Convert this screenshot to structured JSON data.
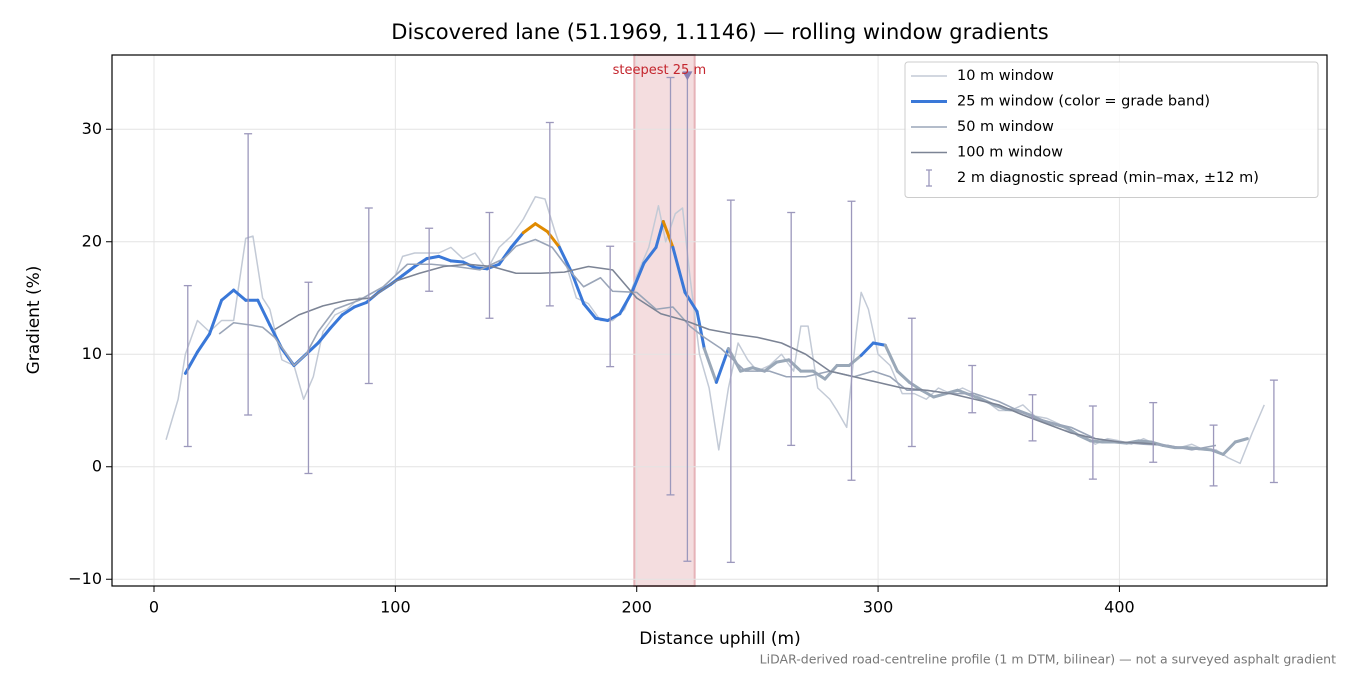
{
  "chart_data": {
    "type": "line",
    "title": "Discovered lane (51.1969, 1.1146) — rolling window gradients",
    "x_label": "Distance uphill (m)",
    "y_label": "Gradient (%)",
    "footnote": "LiDAR-derived road-centreline profile (1 m DTM, bilinear) — not a surveyed asphalt gradient",
    "xlim": [
      -17.4,
      486
    ],
    "ylim": [
      -10.6,
      36.6
    ],
    "xticks": [
      0,
      100,
      200,
      300,
      400
    ],
    "yticks": [
      {
        "value": -10,
        "label": "−10"
      },
      0,
      10,
      20,
      30
    ],
    "grid": true,
    "legend": "upper right",
    "highlight_span": [
      199,
      224
    ],
    "highlight_color": "#e6b3b8",
    "annotation": {
      "text": "steepest 25 m",
      "x": 221,
      "y": 34.7,
      "color": "#c4262e",
      "marker_color": "#8a7fb3"
    },
    "series": [
      {
        "name": "10 m window",
        "color": "#c3cad6",
        "linewidth": 1.5,
        "x": [
          5,
          10,
          13,
          18,
          23,
          28,
          33,
          38,
          41,
          45,
          48,
          53,
          58,
          62,
          66,
          70,
          75,
          80,
          85,
          90,
          95,
          100,
          103,
          108,
          113,
          118,
          123,
          128,
          133,
          138,
          143,
          148,
          153,
          158,
          162,
          166,
          170,
          175,
          180,
          185,
          190,
          195,
          200,
          205,
          209,
          212,
          216,
          219,
          222,
          226,
          230,
          234,
          238,
          242,
          246,
          250,
          255,
          260,
          265,
          268,
          271,
          275,
          280,
          283,
          287,
          291,
          293,
          296,
          300,
          305,
          310,
          315,
          320,
          325,
          330,
          335,
          340,
          345,
          350,
          355,
          360,
          365,
          370,
          375,
          380,
          385,
          390,
          395,
          400,
          405,
          410,
          415,
          420,
          425,
          430,
          435,
          440,
          445,
          450,
          455,
          460
        ],
        "values": [
          2.4,
          6,
          10,
          13,
          12,
          13,
          13,
          20.3,
          20.5,
          15,
          14,
          9.5,
          9,
          6,
          8,
          12,
          13.5,
          14,
          15,
          15,
          16,
          17,
          18.7,
          19,
          19,
          19,
          19.5,
          18.5,
          19,
          17.5,
          19.5,
          20.5,
          22,
          24,
          23.8,
          21,
          18.5,
          15,
          14.5,
          13,
          13,
          14,
          17,
          19.5,
          23.2,
          20,
          22.5,
          23,
          17,
          10,
          7,
          1.5,
          7,
          11,
          9.5,
          8.5,
          9,
          10,
          8.5,
          12.5,
          12.5,
          7,
          6,
          5,
          3.5,
          12,
          15.5,
          14,
          10,
          9,
          6.5,
          6.5,
          6,
          7,
          6.5,
          7,
          6.5,
          5.8,
          5,
          5,
          5.5,
          4.5,
          4.3,
          3.8,
          3,
          2.8,
          2,
          2.5,
          2.3,
          2,
          2.5,
          2,
          1.9,
          1.7,
          2,
          1.5,
          1.5,
          0.8,
          0.3,
          3,
          5.5
        ]
      },
      {
        "name": "25 m window (color = grade band)",
        "color": "#3a78d8",
        "linewidth": 3,
        "x": [
          13,
          18,
          23,
          28,
          33,
          38,
          43,
          48,
          53,
          58,
          63,
          68,
          73,
          78,
          83,
          88,
          93,
          98,
          103,
          108,
          113,
          118,
          123,
          128,
          133,
          138,
          143,
          148,
          153,
          158,
          163,
          168,
          173,
          178,
          183,
          188,
          193,
          198,
          203,
          208,
          211,
          215,
          220,
          225,
          228,
          233,
          238,
          243,
          248,
          253,
          258,
          263,
          268,
          273,
          278,
          283,
          288,
          293,
          298,
          303,
          308,
          313,
          318,
          323,
          328,
          333,
          338,
          343,
          348,
          353,
          358,
          363,
          368,
          373,
          378,
          383,
          388,
          393,
          398,
          403,
          408,
          413,
          418,
          423,
          428,
          433,
          438,
          443,
          448,
          453
        ],
        "values": [
          8.3,
          10.2,
          11.8,
          14.8,
          15.7,
          14.8,
          14.8,
          12.6,
          10.5,
          9.0,
          10.0,
          11.0,
          12.3,
          13.5,
          14.2,
          14.6,
          15.5,
          16.2,
          17.0,
          17.8,
          18.5,
          18.7,
          18.3,
          18.2,
          17.7,
          17.6,
          18.0,
          19.5,
          20.8,
          21.6,
          20.9,
          19.5,
          17.3,
          14.5,
          13.2,
          13.0,
          13.6,
          15.5,
          18.1,
          19.5,
          21.8,
          19.5,
          15.5,
          13.8,
          10.5,
          7.5,
          10.5,
          8.5,
          8.8,
          8.5,
          9.3,
          9.5,
          8.5,
          8.5,
          7.8,
          9.0,
          9.0,
          9.9,
          11.0,
          10.8,
          8.5,
          7.5,
          6.8,
          6.2,
          6.5,
          6.8,
          6.4,
          6.0,
          5.5,
          5.1,
          5.0,
          4.6,
          4.1,
          3.8,
          3.5,
          2.8,
          2.3,
          2.2,
          2.2,
          2.1,
          2.3,
          2.2,
          1.9,
          1.7,
          1.7,
          1.6,
          1.5,
          1.1,
          2.2,
          2.5
        ],
        "colors": [
          "#3a78d8",
          "#3a78d8",
          "#3a78d8",
          "#3a78d8",
          "#3a78d8",
          "#3a78d8",
          "#3a78d8",
          "#3a78d8",
          "#3a78d8",
          "#3a78d8",
          "#3a78d8",
          "#3a78d8",
          "#3a78d8",
          "#3a78d8",
          "#3a78d8",
          "#3a78d8",
          "#3a78d8",
          "#3a78d8",
          "#3a78d8",
          "#3a78d8",
          "#3a78d8",
          "#3a78d8",
          "#3a78d8",
          "#3a78d8",
          "#3a78d8",
          "#3a78d8",
          "#3a78d8",
          "#3a78d8",
          "#e08a00",
          "#e08a00",
          "#e08a00",
          "#3a78d8",
          "#3a78d8",
          "#3a78d8",
          "#3a78d8",
          "#3a78d8",
          "#3a78d8",
          "#3a78d8",
          "#3a78d8",
          "#3a78d8",
          "#e08a00",
          "#3a78d8",
          "#3a78d8",
          "#3a78d8",
          "#9aa8b8",
          "#3a78d8",
          "#9aa8b8",
          "#9aa8b8",
          "#9aa8b8",
          "#9aa8b8",
          "#9aa8b8",
          "#9aa8b8",
          "#9aa8b8",
          "#9aa8b8",
          "#9aa8b8",
          "#9aa8b8",
          "#9aa8b8",
          "#3a78d8",
          "#3a78d8",
          "#9aa8b8",
          "#9aa8b8",
          "#9aa8b8",
          "#9aa8b8",
          "#9aa8b8",
          "#9aa8b8",
          "#9aa8b8",
          "#9aa8b8",
          "#9aa8b8",
          "#9aa8b8",
          "#9aa8b8",
          "#9aa8b8",
          "#9aa8b8",
          "#9aa8b8",
          "#9aa8b8",
          "#9aa8b8",
          "#9aa8b8",
          "#9aa8b8",
          "#9aa8b8",
          "#9aa8b8",
          "#9aa8b8",
          "#9aa8b8",
          "#9aa8b8",
          "#9aa8b8",
          "#9aa8b8",
          "#9aa8b8",
          "#9aa8b8",
          "#9aa8b8",
          "#9aa8b8",
          "#9aa8b8",
          "#9aa8b8"
        ]
      },
      {
        "name": "50 m window",
        "color": "#9aa5b8",
        "linewidth": 1.6,
        "x": [
          27,
          33,
          40,
          45,
          50,
          55,
          58,
          63,
          68,
          75,
          85,
          95,
          105,
          115,
          125,
          135,
          145,
          150,
          158,
          165,
          172,
          178,
          185,
          190,
          200,
          208,
          215,
          222,
          228,
          235,
          245,
          255,
          262,
          270,
          280,
          290,
          298,
          305,
          312,
          320,
          330,
          340,
          350,
          360,
          370,
          380,
          390,
          400,
          410,
          420,
          430,
          440
        ],
        "values": [
          11.8,
          12.8,
          12.6,
          12.4,
          11.5,
          10,
          9,
          10,
          12,
          14,
          14.8,
          16,
          18,
          18,
          17.8,
          17.5,
          18.5,
          19.6,
          20.2,
          19.5,
          17.5,
          16,
          16.8,
          15.6,
          15.5,
          14,
          14.2,
          12.5,
          11.5,
          10.5,
          8.5,
          8.5,
          8,
          8,
          8.5,
          8,
          8.5,
          8,
          6.8,
          6.8,
          6.5,
          6.5,
          5.8,
          4.8,
          4,
          3.5,
          2.5,
          2.2,
          2,
          1.9,
          1.5,
          1.9
        ]
      },
      {
        "name": "100 m window",
        "color": "#7c8495",
        "linewidth": 1.6,
        "x": [
          50,
          60,
          70,
          80,
          90,
          100,
          110,
          120,
          130,
          140,
          150,
          160,
          170,
          180,
          190,
          200,
          210,
          220,
          230,
          240,
          250,
          260,
          270,
          280,
          290,
          300,
          310,
          320,
          330,
          340,
          350,
          360,
          370,
          380,
          390,
          400,
          410,
          415
        ],
        "values": [
          12.2,
          13.5,
          14.3,
          14.8,
          15,
          16.5,
          17.2,
          17.8,
          18,
          17.8,
          17.2,
          17.2,
          17.3,
          17.8,
          17.5,
          15,
          13.6,
          13,
          12.2,
          11.8,
          11.5,
          11,
          10,
          8.5,
          8,
          7.5,
          7,
          6.8,
          6.5,
          6,
          5.5,
          4.6,
          3.8,
          3,
          2.5,
          2.2,
          2.1,
          2
        ]
      }
    ],
    "errorbars": {
      "name": "2 m diagnostic spread (min–max, ±12 m)",
      "color": "#9c98bc",
      "x": [
        14,
        39,
        64,
        89,
        114,
        139,
        164,
        189,
        214,
        221,
        239,
        264,
        289,
        314,
        339,
        364,
        389,
        414,
        439,
        464
      ],
      "low": [
        1.8,
        4.6,
        -0.6,
        7.4,
        15.6,
        13.2,
        14.3,
        8.9,
        -2.5,
        -8.4,
        -8.5,
        1.9,
        -1.2,
        1.8,
        4.8,
        2.3,
        -1.1,
        0.4,
        -1.7,
        -1.4
      ],
      "high": [
        16.1,
        29.6,
        16.4,
        23.0,
        21.2,
        22.6,
        30.6,
        19.6,
        34.6,
        35.0,
        23.7,
        22.6,
        23.6,
        13.2,
        9.0,
        6.4,
        5.4,
        5.7,
        3.7,
        7.7
      ]
    }
  }
}
